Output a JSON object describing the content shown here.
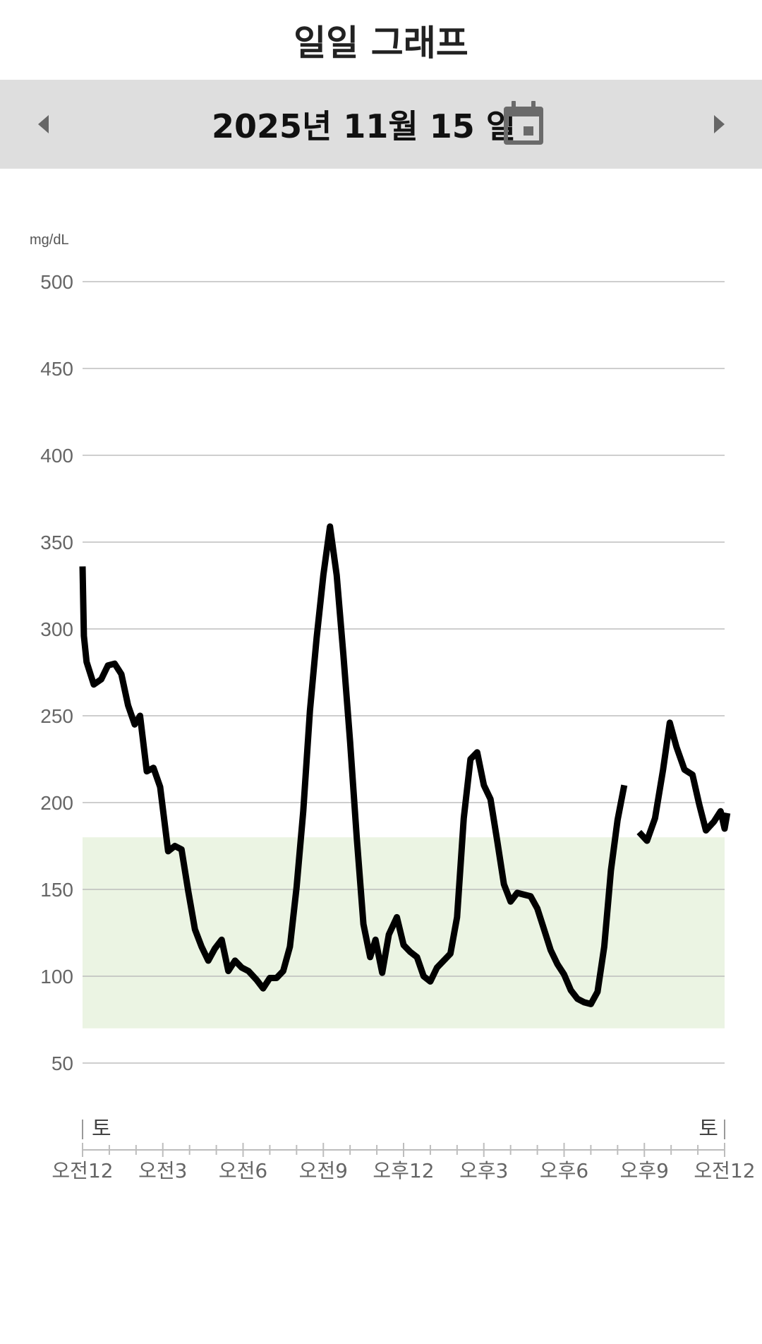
{
  "screen": {
    "title": "일일 그래프",
    "date": "2025년 11월 15 일",
    "icons": {
      "prev": "chevron-left-icon",
      "next": "chevron-right-icon",
      "calendar": "calendar-icon"
    },
    "colors": {
      "datebar": "#dedede",
      "target_band": "#ebf4e3",
      "line": "#000000",
      "grid": "#bdbdbd",
      "axis_text": "#666666"
    }
  },
  "chart_data": {
    "type": "line",
    "unit_label": "mg/dL",
    "ylim": [
      20,
      530
    ],
    "yticks": [
      500,
      450,
      400,
      350,
      300,
      250,
      200,
      150,
      100,
      50
    ],
    "xlim": [
      0,
      24
    ],
    "xticks": [
      {
        "x": 0,
        "label": "오전12"
      },
      {
        "x": 3,
        "label": "오전3"
      },
      {
        "x": 6,
        "label": "오전6"
      },
      {
        "x": 9,
        "label": "오전9"
      },
      {
        "x": 12,
        "label": "오후12"
      },
      {
        "x": 15,
        "label": "오후3"
      },
      {
        "x": 18,
        "label": "오후6"
      },
      {
        "x": 21,
        "label": "오후9"
      },
      {
        "x": 24,
        "label": "오전12"
      }
    ],
    "day_labels": [
      {
        "x": 0,
        "label": "토"
      },
      {
        "x": 24,
        "label": "토"
      }
    ],
    "target_range": [
      70,
      180
    ],
    "grid": true,
    "series": [
      {
        "points": [
          [
            0,
            336
          ],
          [
            0.05,
            296
          ],
          [
            0.15,
            281
          ],
          [
            0.42,
            268
          ],
          [
            0.7,
            271
          ],
          [
            0.95,
            279
          ],
          [
            1.2,
            280
          ],
          [
            1.45,
            274
          ],
          [
            1.7,
            256
          ],
          [
            1.95,
            245
          ],
          [
            2.15,
            250
          ],
          [
            2.4,
            218
          ],
          [
            2.65,
            220
          ],
          [
            2.9,
            209
          ],
          [
            3.2,
            172
          ],
          [
            3.45,
            175
          ],
          [
            3.7,
            173
          ],
          [
            3.95,
            149
          ],
          [
            4.2,
            127
          ],
          [
            4.45,
            117
          ],
          [
            4.7,
            109
          ],
          [
            4.95,
            116
          ],
          [
            5.2,
            121
          ],
          [
            5.45,
            103
          ],
          [
            5.7,
            109
          ],
          [
            5.95,
            105
          ],
          [
            6.2,
            103
          ],
          [
            6.5,
            98
          ],
          [
            6.75,
            93
          ],
          [
            7.0,
            99
          ],
          [
            7.25,
            99
          ],
          [
            7.5,
            103
          ],
          [
            7.75,
            117
          ],
          [
            8.0,
            151
          ],
          [
            8.25,
            195
          ],
          [
            8.5,
            253
          ],
          [
            8.75,
            295
          ],
          [
            9.0,
            331
          ],
          [
            9.25,
            359
          ],
          [
            9.5,
            331
          ],
          [
            9.75,
            285
          ],
          [
            10.0,
            235
          ],
          [
            10.25,
            180
          ],
          [
            10.5,
            130
          ],
          [
            10.75,
            111
          ],
          [
            10.95,
            121
          ],
          [
            11.2,
            102
          ],
          [
            11.45,
            124
          ],
          [
            11.75,
            134
          ],
          [
            12.0,
            118
          ],
          [
            12.25,
            114
          ],
          [
            12.5,
            111
          ],
          [
            12.75,
            100
          ],
          [
            13.0,
            97
          ],
          [
            13.25,
            105
          ],
          [
            13.5,
            109
          ],
          [
            13.75,
            113
          ],
          [
            14.0,
            134
          ],
          [
            14.25,
            191
          ],
          [
            14.5,
            225
          ],
          [
            14.75,
            229
          ],
          [
            15.0,
            210
          ],
          [
            15.25,
            202
          ],
          [
            15.5,
            178
          ],
          [
            15.75,
            153
          ],
          [
            16.0,
            143
          ],
          [
            16.25,
            148
          ],
          [
            16.5,
            147
          ],
          [
            16.75,
            146
          ],
          [
            17.0,
            139
          ],
          [
            17.25,
            127
          ],
          [
            17.5,
            115
          ],
          [
            17.75,
            107
          ],
          [
            18.0,
            101
          ],
          [
            18.25,
            92
          ],
          [
            18.5,
            87
          ],
          [
            18.75,
            85
          ],
          [
            19.0,
            84
          ],
          [
            19.25,
            91
          ],
          [
            19.5,
            117
          ],
          [
            19.75,
            161
          ],
          [
            20.0,
            190
          ],
          [
            20.25,
            210
          ]
        ]
      },
      {
        "points": [
          [
            20.8,
            183
          ],
          [
            21.1,
            178
          ],
          [
            21.4,
            191
          ],
          [
            21.7,
            219
          ],
          [
            21.95,
            246
          ],
          [
            22.2,
            232
          ],
          [
            22.5,
            219
          ],
          [
            22.8,
            216
          ],
          [
            23.05,
            199
          ],
          [
            23.3,
            184
          ],
          [
            23.6,
            189
          ],
          [
            23.85,
            195
          ],
          [
            24.0,
            185
          ],
          [
            24.1,
            194
          ]
        ]
      }
    ]
  }
}
